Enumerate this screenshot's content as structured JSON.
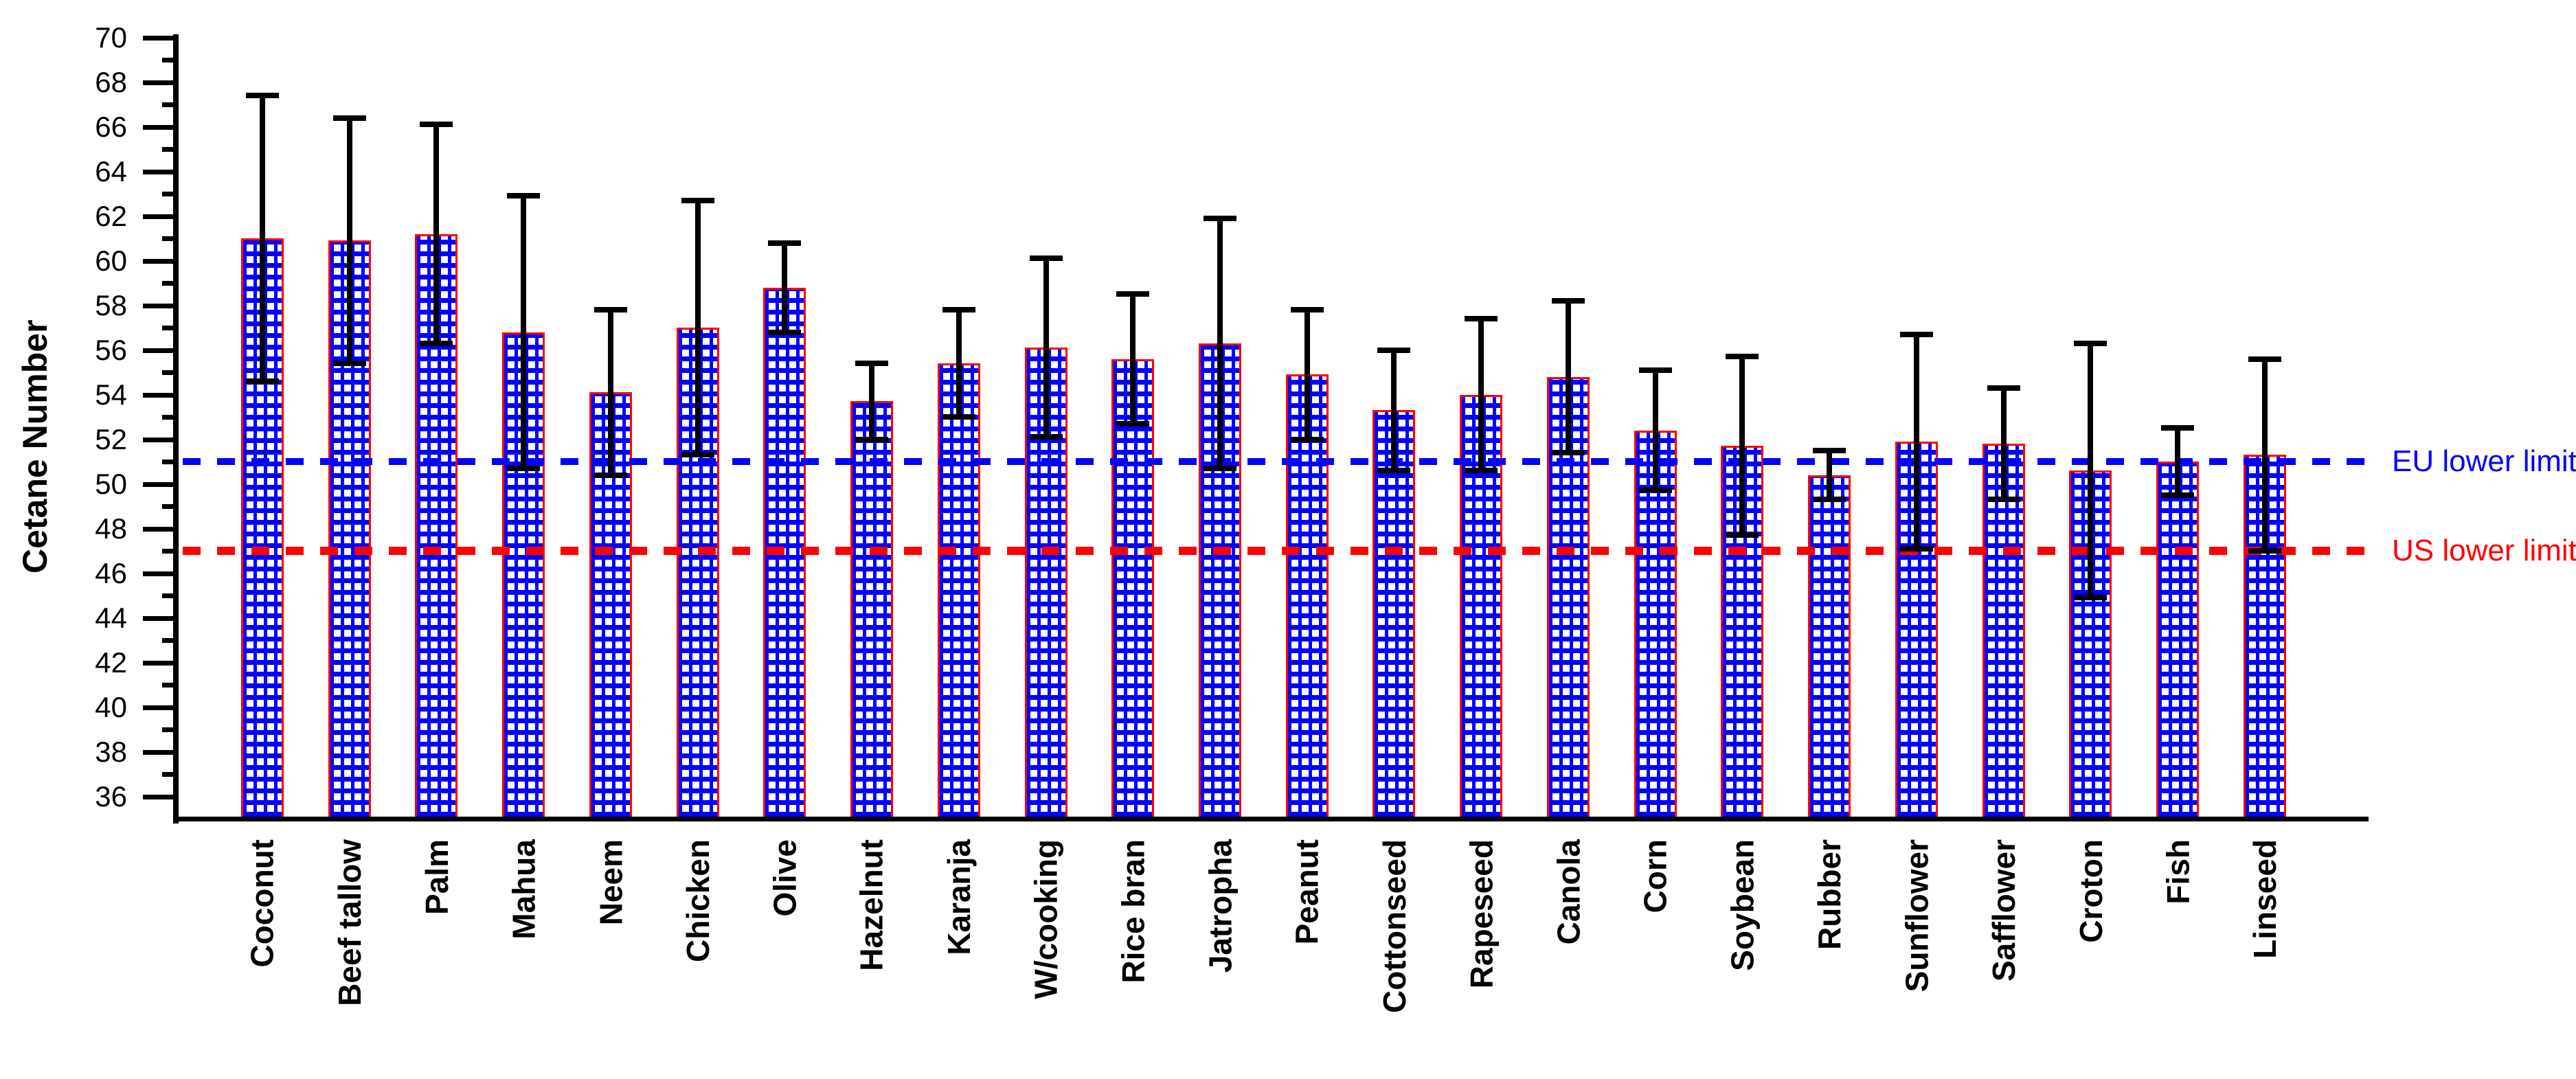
{
  "chart_data": {
    "type": "bar",
    "title": "",
    "ylabel": "Cetane Number",
    "xlabel": "",
    "ylim": [
      35,
      70
    ],
    "ytick_labeled_step": 2,
    "ytick_minor_step": 1,
    "ytick_labels": [
      "36",
      "38",
      "40",
      "42",
      "44",
      "46",
      "48",
      "50",
      "52",
      "54",
      "56",
      "58",
      "60",
      "62",
      "64",
      "66",
      "68",
      "70"
    ],
    "grid": false,
    "x_tick_label_rotation": 90,
    "categories": [
      "Coconut",
      "Beef tallow",
      "Palm",
      "Mahua",
      "Neem",
      "Chicken",
      "Olive",
      "Hazelnut",
      "Karanja",
      "W/cooking",
      "Rice bran",
      "Jatropha",
      "Peanut",
      "Cottonseed",
      "Rapeseed",
      "Canola",
      "Corn",
      "Soybean",
      "Rubber",
      "Sunflower",
      "Safflower",
      "Croton",
      "Fish",
      "Linseed"
    ],
    "values": [
      61.0,
      60.9,
      61.2,
      56.8,
      54.1,
      57.0,
      58.8,
      53.7,
      55.4,
      56.1,
      55.6,
      56.3,
      54.9,
      53.3,
      54.0,
      54.8,
      52.4,
      51.7,
      50.4,
      51.9,
      51.8,
      50.6,
      51.0,
      51.3
    ],
    "errors": [
      6.4,
      5.5,
      4.9,
      6.1,
      3.7,
      5.7,
      2.0,
      1.7,
      2.4,
      4.0,
      2.9,
      5.6,
      2.9,
      2.7,
      3.4,
      3.4,
      2.7,
      4.0,
      1.1,
      4.8,
      2.5,
      5.7,
      1.5,
      4.3
    ],
    "bar_color": "#0000ff",
    "bar_pattern": "white-dot-grid",
    "bar_border_color": "#ff0000",
    "error_bar_color": "#000000",
    "axis_color": "#000000",
    "reference_lines": [
      {
        "label": "EU lower limit",
        "value": 51,
        "color": "#0000ff",
        "style": "dashed"
      },
      {
        "label": "US lower limit",
        "value": 47,
        "color": "#ff0000",
        "style": "dashed"
      }
    ]
  }
}
